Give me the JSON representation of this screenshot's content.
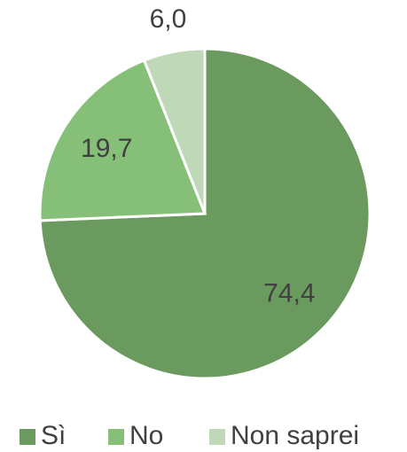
{
  "chart_data": {
    "type": "pie",
    "categories": [
      "Sì",
      "No",
      "Non saprei"
    ],
    "values": [
      74.4,
      19.7,
      6.0
    ],
    "value_labels": [
      "74,4",
      "19,7",
      "6,0"
    ],
    "colors": [
      "#6a9a5e",
      "#86bf77",
      "#bfd9b8"
    ],
    "legend": "bottom"
  }
}
